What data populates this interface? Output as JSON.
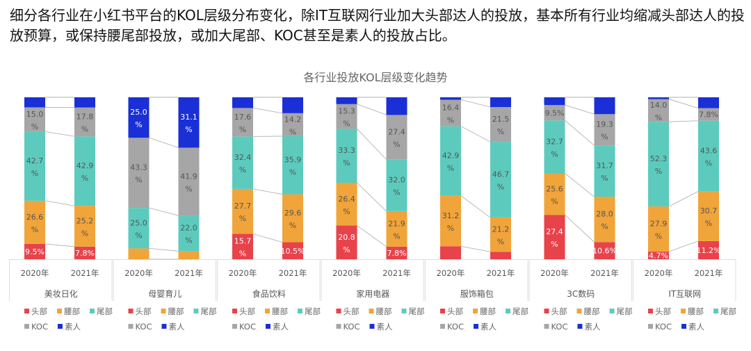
{
  "headline": "细分各行业在小红书平台的KOL层级分布变化，除IT互联网行业加大头部达人的投放，基本所有行业均缩减头部达人的投放预算，或保持腰尾部投放，或加大尾部、KOC甚至是素人的投放占比。",
  "chart_data": {
    "type": "bar",
    "stacked": true,
    "unit": "%",
    "title": "各行业投放KOL层级变化趋势",
    "ylim": [
      0,
      100
    ],
    "x": [
      "2020年",
      "2021年"
    ],
    "series": [
      {
        "name": "头部",
        "color": "#e8424a"
      },
      {
        "name": "腰部",
        "color": "#f0a43a"
      },
      {
        "name": "尾部",
        "color": "#5ccbbd"
      },
      {
        "name": "KOC",
        "color": "#a6a6a6"
      },
      {
        "name": "素人",
        "color": "#1a2fd6"
      }
    ],
    "categories": [
      {
        "name": "美妆日化",
        "values": [
          [
            9.5,
            26.6,
            42.7,
            15.0,
            6.2
          ],
          [
            7.8,
            25.2,
            42.9,
            17.8,
            6.3
          ]
        ],
        "labels": [
          [
            "9.5%",
            "26.6%",
            "42.7%",
            "15.0%",
            ""
          ],
          [
            "7.8%",
            "25.2%",
            "42.9%",
            "17.8%",
            ""
          ]
        ]
      },
      {
        "name": "母婴育儿",
        "values": [
          [
            0,
            6.7,
            25.0,
            43.3,
            25.0
          ],
          [
            0,
            5.0,
            22.0,
            41.9,
            31.1
          ]
        ],
        "labels": [
          [
            "",
            "",
            "25.0%",
            "43.3%",
            "25.0%"
          ],
          [
            "",
            "",
            "22.0%",
            "41.9%",
            "31.1%"
          ]
        ]
      },
      {
        "name": "食品饮料",
        "values": [
          [
            15.7,
            27.7,
            32.4,
            17.6,
            6.6
          ],
          [
            10.5,
            29.6,
            35.9,
            14.2,
            9.8
          ]
        ],
        "labels": [
          [
            "15.7%",
            "27.7%",
            "32.4%",
            "17.6%",
            ""
          ],
          [
            "10.5%",
            "29.6%",
            "35.9%",
            "14.2%",
            ""
          ]
        ]
      },
      {
        "name": "家用电器",
        "values": [
          [
            20.8,
            26.4,
            33.3,
            15.3,
            4.2
          ],
          [
            7.8,
            21.9,
            32.0,
            27.4,
            10.9
          ]
        ],
        "labels": [
          [
            "20.8%",
            "26.4%",
            "33.3%",
            "15.3%",
            ""
          ],
          [
            "7.8%",
            "21.9%",
            "32.0%",
            "27.4%",
            ""
          ]
        ]
      },
      {
        "name": "服饰箱包",
        "values": [
          [
            8.0,
            31.2,
            42.9,
            16.4,
            1.5
          ],
          [
            4.6,
            21.2,
            46.7,
            21.5,
            6.0
          ]
        ],
        "labels": [
          [
            "",
            "31.2%",
            "42.9%",
            "16.4%",
            ""
          ],
          [
            "",
            "21.2%",
            "46.7%",
            "21.5%",
            ""
          ]
        ]
      },
      {
        "name": "3C数码",
        "values": [
          [
            27.4,
            25.6,
            32.7,
            9.5,
            4.8
          ],
          [
            10.6,
            28.0,
            31.7,
            19.3,
            10.4
          ]
        ],
        "labels": [
          [
            "27.4%",
            "25.6%",
            "32.7%",
            "9.5%",
            ""
          ],
          [
            "10.6%",
            "28.0%",
            "31.7%",
            "19.3%",
            ""
          ]
        ]
      },
      {
        "name": "IT互联网",
        "values": [
          [
            4.7,
            27.9,
            52.3,
            14.0,
            1.1
          ],
          [
            11.2,
            30.7,
            43.6,
            7.8,
            6.7
          ]
        ],
        "labels": [
          [
            "4.7%",
            "27.9%",
            "52.3%",
            "14.0%",
            ""
          ],
          [
            "11.2%",
            "30.7%",
            "43.6%",
            "7.8%",
            ""
          ]
        ]
      }
    ],
    "legend_placement": "bottom"
  }
}
